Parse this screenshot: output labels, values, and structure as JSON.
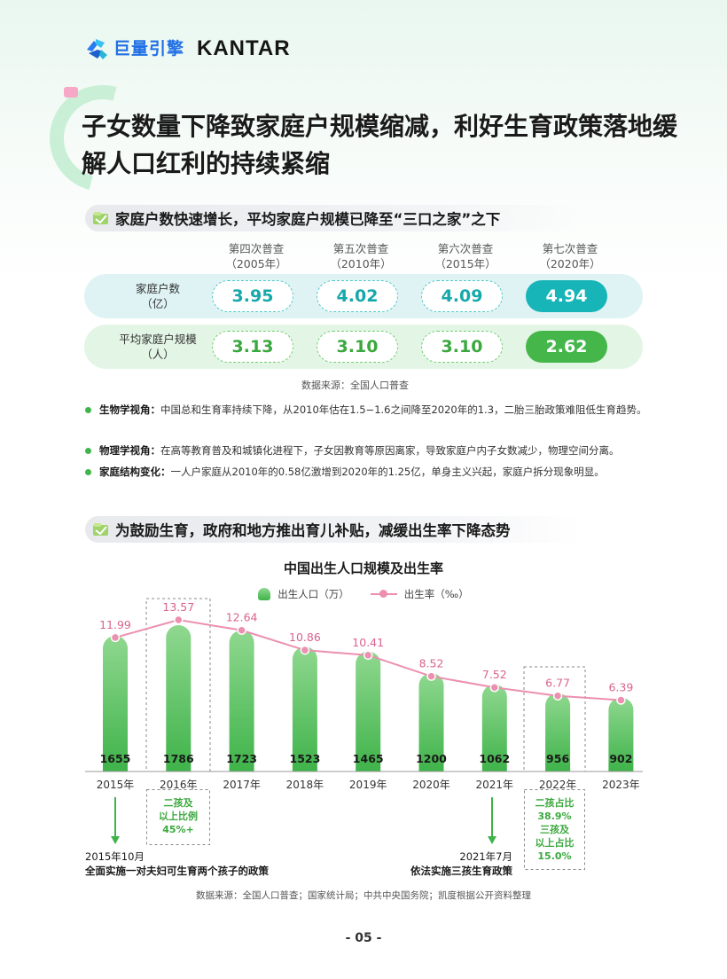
{
  "header": {
    "logo_cn": "巨量引擎",
    "logo_en": "KANTAR"
  },
  "title": "子女数量下降致家庭户规模缩减，利好生育政策落地缓解人口红利的持续紧缩",
  "section1": {
    "heading": "家庭户数快速增长，平均家庭户规模已降至“三口之家”之下",
    "columns": [
      {
        "name": "第四次普查",
        "year": "（2005年）"
      },
      {
        "name": "第五次普查",
        "year": "（2010年）"
      },
      {
        "name": "第六次普查",
        "year": "（2015年）"
      },
      {
        "name": "第七次普查",
        "year": "（2020年）"
      }
    ],
    "rows": [
      {
        "label1": "家庭户数",
        "label2": "（亿）",
        "values": [
          "3.95",
          "4.02",
          "4.09",
          "4.94"
        ]
      },
      {
        "label1": "平均家庭户规模",
        "label2": "（人）",
        "values": [
          "3.13",
          "3.10",
          "3.10",
          "2.62"
        ]
      }
    ],
    "source": "数据来源：全国人口普查",
    "bullets": [
      {
        "label": "生物学视角：",
        "text": "中国总和生育率持续下降，从2010年估在1.5−1.6之间降至2020年的1.3，二胎三胎政策难阻低生育趋势。"
      },
      {
        "label": "物理学视角：",
        "text": "在高等教育普及和城镇化进程下，子女因教育等原因离家，导致家庭户内子女数减少，物理空间分离。"
      },
      {
        "label": "家庭结构变化：",
        "text": "一人户家庭从2010年的0.58亿激增到2020年的1.25亿，单身主义兴起，家庭户拆分现象明显。"
      }
    ]
  },
  "section2": {
    "heading": "为鼓励生育，政府和地方推出育儿补贴，减缓出生率下降态势",
    "notes": {
      "n2016": [
        "二孩及",
        "以上比例",
        "45%+"
      ],
      "n2022": [
        "二孩占比",
        "38.9%",
        "三孩及",
        "以上占比",
        "15.0%"
      ]
    },
    "policy_left": [
      "2015年10月",
      "全面实施一对夫妇可生育两个孩子的政策"
    ],
    "policy_right": [
      "2021年7月",
      "依法实施三孩生育政策"
    ],
    "source": "数据来源：全国人口普查；国家统计局；中共中央国务院；凯度根据公开资料整理"
  },
  "chart_data": {
    "type": "bar",
    "title": "中国出生人口规模及出生率",
    "categories": [
      "2015年",
      "2016年",
      "2017年",
      "2018年",
      "2019年",
      "2020年",
      "2021年",
      "2022年",
      "2023年"
    ],
    "series": [
      {
        "name": "出生人口（万）",
        "type": "bar",
        "values": [
          1655,
          1786,
          1723,
          1523,
          1465,
          1200,
          1062,
          956,
          902
        ]
      },
      {
        "name": "出生率（‰）",
        "type": "line",
        "values": [
          11.99,
          13.57,
          12.64,
          10.86,
          10.41,
          8.52,
          7.52,
          6.77,
          6.39
        ]
      }
    ],
    "value_labels_rate": [
      "11.99",
      "13.57",
      "12.64",
      "10.86",
      "10.41",
      "8.52",
      "7.52",
      "6.77",
      "6.39"
    ],
    "value_labels_births": [
      "1655",
      "1786",
      "1723",
      "1523",
      "1465",
      "1200",
      "1062",
      "956",
      "902"
    ],
    "legend_position": "top",
    "highlight_categories": [
      "2016年",
      "2022年"
    ],
    "colors": {
      "bar_top": "#8fd88f",
      "bar_bottom": "#3fb34a",
      "line": "#ec8fb0",
      "label": "#d9638f"
    }
  },
  "footer": {
    "page": "- 05 -"
  }
}
